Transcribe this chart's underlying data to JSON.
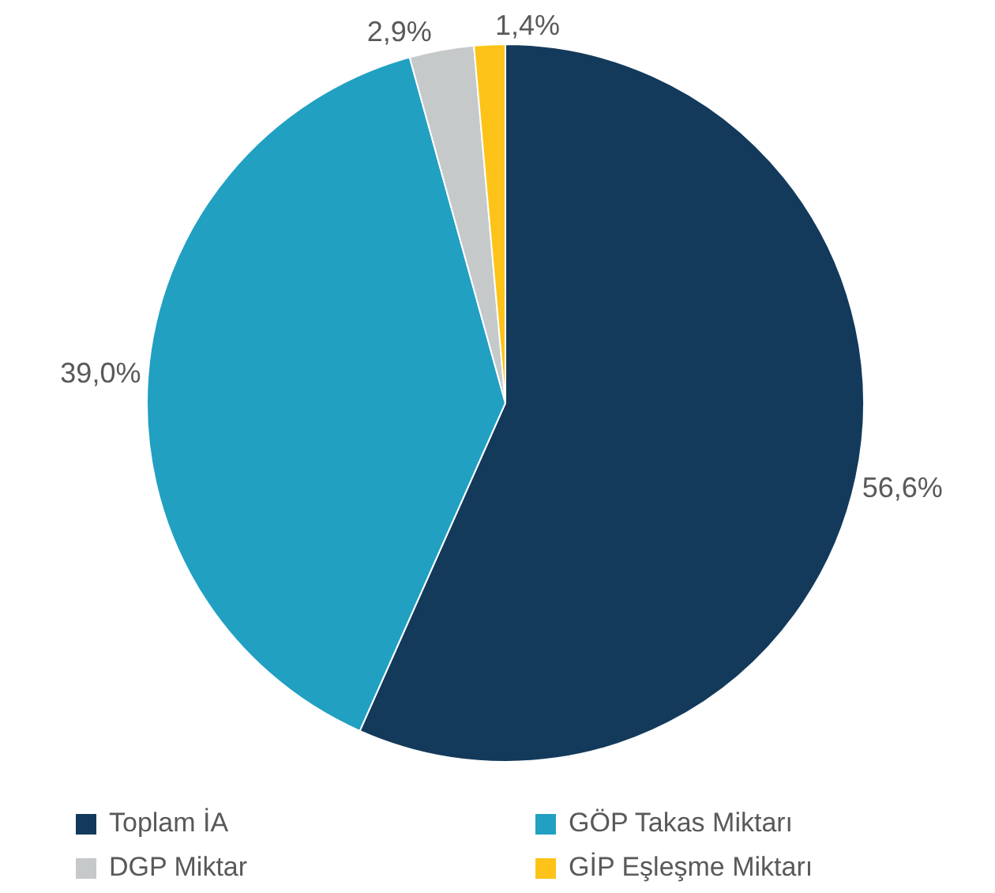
{
  "chart_data": {
    "type": "pie",
    "categories": [
      "Toplam İA",
      "GÖP Takas Miktarı",
      "DGP Miktar",
      "GİP Eşleşme Miktarı"
    ],
    "values": [
      56.6,
      39.0,
      2.9,
      1.4
    ],
    "value_labels": [
      "56,6%",
      "39,0%",
      "2,9%",
      "1,4%"
    ],
    "colors": [
      "#133a5b",
      "#21a0c2",
      "#c5c9ca",
      "#fdc318"
    ],
    "legend": "bottom"
  }
}
